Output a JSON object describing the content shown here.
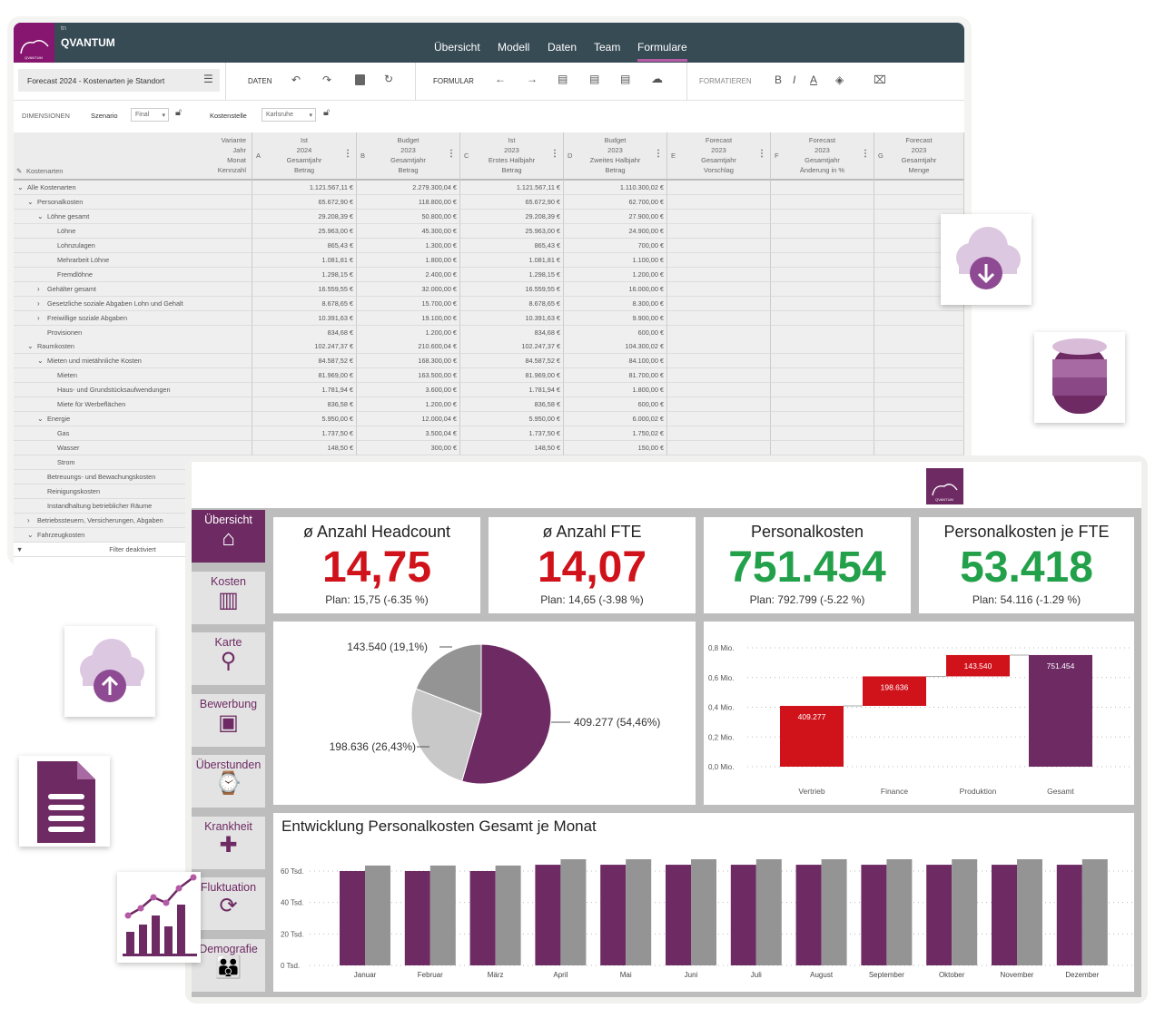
{
  "app": {
    "brand_small": "tn",
    "brand": "QVANTUM",
    "logo_text": "QVANTUM",
    "nav": [
      "Übersicht",
      "Modell",
      "Daten",
      "Team",
      "Formulare"
    ],
    "active_nav": "Formulare"
  },
  "toolbar": {
    "form_name": "Forecast 2024 - Kostenarten je Standort",
    "daten": "DATEN",
    "formular": "FORMULAR",
    "formatieren": "FORMATIEREN",
    "bold": "B",
    "italic": "I",
    "font_color": "A"
  },
  "dimensions": {
    "label": "DIMENSIONEN",
    "szenario_label": "Szenario",
    "szenario_value": "Final",
    "kostenstelle_label": "Kostenstelle",
    "kostenstelle_value": "Karlsruhe"
  },
  "table": {
    "row_header": "Kostenarten",
    "col_dims": "Variante\nJahr\nMonat\nKennzahl",
    "columns": [
      {
        "letter": "A",
        "label": "Ist\n2024\nGesamtjahr\nBetrag"
      },
      {
        "letter": "B",
        "label": "Budget\n2023\nGesamtjahr\nBetrag"
      },
      {
        "letter": "C",
        "label": "Ist\n2023\nErstes Halbjahr\nBetrag"
      },
      {
        "letter": "D",
        "label": "Budget\n2023\nZweites Halbjahr\nBetrag"
      },
      {
        "letter": "E",
        "label": "Forecast\n2023\nGesamtjahr\nVorschlag"
      },
      {
        "letter": "F",
        "label": "Forecast\n2023\nGesamtjahr\nÄnderung in %"
      },
      {
        "letter": "G",
        "label": "Forecast\n2023\nGesamtjahr\nMenge"
      }
    ],
    "rows": [
      {
        "label": "Alle Kostenarten",
        "level": 0,
        "state": "open",
        "values": [
          "1.121.567,11 €",
          "2.279.300,04 €",
          "1.121.567,11 €",
          "1.110.300,02 €"
        ]
      },
      {
        "label": "Personalkosten",
        "level": 1,
        "state": "open",
        "values": [
          "65.672,90 €",
          "118.800,00 €",
          "65.672,90 €",
          "62.700,00 €"
        ]
      },
      {
        "label": "Löhne gesamt",
        "level": 2,
        "state": "open",
        "values": [
          "29.208,39 €",
          "50.800,00 €",
          "29.208,39 €",
          "27.900,00 €"
        ]
      },
      {
        "label": "Löhne",
        "level": 3,
        "state": "leaf",
        "values": [
          "25.963,00 €",
          "45.300,00 €",
          "25.963,00 €",
          "24.900,00 €"
        ]
      },
      {
        "label": "Lohnzulagen",
        "level": 3,
        "state": "leaf",
        "values": [
          "865,43 €",
          "1.300,00 €",
          "865,43 €",
          "700,00 €"
        ]
      },
      {
        "label": "Mehrarbeit Löhne",
        "level": 3,
        "state": "leaf",
        "values": [
          "1.081,81 €",
          "1.800,00 €",
          "1.081,81 €",
          "1.100,00 €"
        ]
      },
      {
        "label": "Fremdlöhne",
        "level": 3,
        "state": "leaf",
        "values": [
          "1.298,15 €",
          "2.400,00 €",
          "1.298,15 €",
          "1.200,00 €"
        ]
      },
      {
        "label": "Gehälter gesamt",
        "level": 2,
        "state": "closed",
        "values": [
          "16.559,55 €",
          "32.000,00 €",
          "16.559,55 €",
          "16.000,00 €"
        ]
      },
      {
        "label": "Gesetzliche soziale Abgaben Lohn und Gehalt",
        "level": 2,
        "state": "closed",
        "values": [
          "8.678,65 €",
          "15.700,00 €",
          "8.678,65 €",
          "8.300,00 €"
        ]
      },
      {
        "label": "Freiwillige soziale Abgaben",
        "level": 2,
        "state": "closed",
        "values": [
          "10.391,63 €",
          "19.100,00 €",
          "10.391,63 €",
          "9.900,00 €"
        ]
      },
      {
        "label": "Provisionen",
        "level": 2,
        "state": "leaf",
        "values": [
          "834,68 €",
          "1.200,00 €",
          "834,68 €",
          "600,00 €"
        ]
      },
      {
        "label": "Raumkosten",
        "level": 1,
        "state": "open",
        "values": [
          "102.247,37 €",
          "210.600,04 €",
          "102.247,37 €",
          "104.300,02 €"
        ]
      },
      {
        "label": "Mieten und mietähnliche Kosten",
        "level": 2,
        "state": "open",
        "values": [
          "84.587,52 €",
          "168.300,00 €",
          "84.587,52 €",
          "84.100,00 €"
        ]
      },
      {
        "label": "Mieten",
        "level": 3,
        "state": "leaf",
        "values": [
          "81.969,00 €",
          "163.500,00 €",
          "81.969,00 €",
          "81.700,00 €"
        ]
      },
      {
        "label": "Haus- und Grundstücksaufwendungen",
        "level": 3,
        "state": "leaf",
        "values": [
          "1.781,94 €",
          "3.600,00 €",
          "1.781,94 €",
          "1.800,00 €"
        ]
      },
      {
        "label": "Miete für Werbeflächen",
        "level": 3,
        "state": "leaf",
        "values": [
          "836,58 €",
          "1.200,00 €",
          "836,58 €",
          "600,00 €"
        ]
      },
      {
        "label": "Energie",
        "level": 2,
        "state": "open",
        "values": [
          "5.950,00 €",
          "12.000,04 €",
          "5.950,00 €",
          "6.000,02 €"
        ]
      },
      {
        "label": "Gas",
        "level": 3,
        "state": "leaf",
        "values": [
          "1.737,50 €",
          "3.500,04 €",
          "1.737,50 €",
          "1.750,02 €"
        ]
      },
      {
        "label": "Wasser",
        "level": 3,
        "state": "leaf",
        "values": [
          "148,50 €",
          "300,00 €",
          "148,50 €",
          "150,00 €"
        ]
      },
      {
        "label": "Strom",
        "level": 3,
        "state": "leaf",
        "values": []
      },
      {
        "label": "Betreuungs- und Bewachungskosten",
        "level": 2,
        "state": "leaf",
        "values": []
      },
      {
        "label": "Reinigungskosten",
        "level": 2,
        "state": "leaf",
        "values": []
      },
      {
        "label": "Instandhaltung betrieblicher Räume",
        "level": 2,
        "state": "leaf",
        "values": []
      },
      {
        "label": "Betriebssteuern, Versicherungen, Abgaben",
        "level": 1,
        "state": "closed",
        "values": []
      },
      {
        "label": "Fahrzeugkosten",
        "level": 1,
        "state": "open",
        "values": []
      }
    ],
    "filter": "Filter deaktiviert"
  },
  "dashboard": {
    "logo_text": "QVANTUM",
    "sidebar": [
      "Übersicht",
      "Kosten",
      "Karte",
      "Bewerbung",
      "Überstunden",
      "Krankheit",
      "Fluktuation",
      "Demografie"
    ],
    "kpis": [
      {
        "title": "ø Anzahl Headcount",
        "value": "14,75",
        "plan": "Plan: 15,75 (-6.35 %)",
        "color": "#d0121b"
      },
      {
        "title": "ø Anzahl FTE",
        "value": "14,07",
        "plan": "Plan: 14,65 (-3.98 %)",
        "color": "#d0121b"
      },
      {
        "title": "Personalkosten",
        "value": "751.454",
        "plan": "Plan: 792.799 (-5.22 %)",
        "color": "#22a04a"
      },
      {
        "title": "Personalkosten je FTE",
        "value": "53.418",
        "plan": "Plan: 54.116 (-1.29 %)",
        "color": "#22a04a"
      }
    ],
    "bar_title": "Entwicklung Personalkosten Gesamt je Monat"
  },
  "colors": {
    "purple": "#6d2a63",
    "red": "#d0121b",
    "green": "#22a04a",
    "header": "#374b55",
    "gray": "#949494"
  },
  "chart_data": [
    {
      "type": "pie",
      "labels": [
        "409.277 (54,46%)",
        "198.636 (26,43%)",
        "143.540 (19,1%)"
      ],
      "values": [
        409277,
        198636,
        143540
      ],
      "colors": [
        "#6d2a63",
        "#c8c8c8",
        "#949494"
      ]
    },
    {
      "type": "bar",
      "subtype": "waterfall",
      "categories": [
        "Vertrieb",
        "Finance",
        "Produktion",
        "Gesamt"
      ],
      "values": [
        409277,
        198636,
        143540,
        751454
      ],
      "labels": [
        "409.277",
        "198.636",
        "143.540",
        "751.454"
      ],
      "ylim": [
        0,
        800000
      ],
      "yticks": [
        "0,0 Mio.",
        "0,2 Mio.",
        "0,4 Mio.",
        "0,6 Mio.",
        "0,8 Mio."
      ],
      "grid": true
    },
    {
      "type": "bar",
      "title": "Entwicklung Personalkosten Gesamt je Monat",
      "categories": [
        "Januar",
        "Februar",
        "März",
        "April",
        "Mai",
        "Juni",
        "Juli",
        "August",
        "September",
        "Oktober",
        "November",
        "Dezember"
      ],
      "series": [
        {
          "values": [
            60000,
            60000,
            60000,
            64000,
            64000,
            64000,
            64000,
            64000,
            64000,
            64000,
            64000,
            64000
          ],
          "color": "#6d2a63"
        },
        {
          "values": [
            63500,
            63500,
            63500,
            67500,
            67500,
            67500,
            67500,
            67500,
            67500,
            67500,
            67500,
            67500
          ],
          "color": "#949494"
        }
      ],
      "ylim": [
        0,
        70000
      ],
      "yticks": [
        "0 Tsd.",
        "20 Tsd.",
        "40 Tsd.",
        "60 Tsd."
      ],
      "grid": true
    }
  ]
}
